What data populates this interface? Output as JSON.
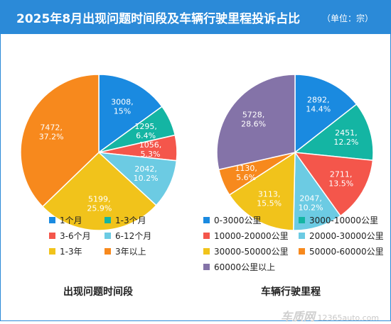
{
  "title": "2025年8月出现问题时间段及车辆行驶里程投诉占比",
  "unit_note": "（单位：宗）",
  "watermark": {
    "logo": "车质网",
    "site": "12365auto.com"
  },
  "chart_data": [
    {
      "type": "pie",
      "title": "出现问题时间段",
      "legend_position": "bottom",
      "slices": [
        {
          "label": "1个月",
          "value": 3008,
          "percent": "15%",
          "color": "#1a8ae0"
        },
        {
          "label": "1-3个月",
          "value": 1295,
          "percent": "6.4%",
          "color": "#14b5a3"
        },
        {
          "label": "3-6个月",
          "value": 1056,
          "percent": "5.3%",
          "color": "#f4564b"
        },
        {
          "label": "6-12个月",
          "value": 2042,
          "percent": "10.2%",
          "color": "#6ccbe3"
        },
        {
          "label": "1-3年",
          "value": 5199,
          "percent": "25.9%",
          "color": "#f1c31b"
        },
        {
          "label": "3年以上",
          "value": 7472,
          "percent": "37.2%",
          "color": "#f7891d"
        }
      ]
    },
    {
      "type": "pie",
      "title": "车辆行驶里程",
      "legend_position": "bottom",
      "slices": [
        {
          "label": "0-3000公里",
          "value": 2892,
          "percent": "14.4%",
          "color": "#1a8ae0"
        },
        {
          "label": "3000-10000公里",
          "value": 2451,
          "percent": "12.2%",
          "color": "#14b5a3"
        },
        {
          "label": "10000-20000公里",
          "value": 2711,
          "percent": "13.5%",
          "color": "#f4564b"
        },
        {
          "label": "20000-30000公里",
          "value": 2047,
          "percent": "10.2%",
          "color": "#6ccbe3"
        },
        {
          "label": "30000-50000公里",
          "value": 3113,
          "percent": "15.5%",
          "color": "#f1c31b"
        },
        {
          "label": "50000-60000公里",
          "value": 1130,
          "percent": "5.6%",
          "color": "#f7891d"
        },
        {
          "label": "60000公里以上",
          "value": 5728,
          "percent": "28.6%",
          "color": "#8473a8"
        }
      ]
    }
  ]
}
